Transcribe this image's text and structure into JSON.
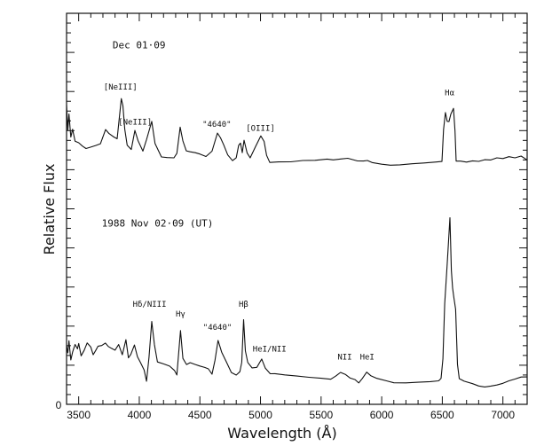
{
  "chart_data": {
    "type": "line",
    "title": "",
    "xlabel": "Wavelength (Å)",
    "ylabel": "Relative  Flux",
    "xlim": [
      3400,
      7200
    ],
    "ylim": [
      0,
      100
    ],
    "x_ticks": [
      3500,
      4000,
      4500,
      5000,
      5500,
      6000,
      6500,
      7000
    ],
    "x_tick_labels": [
      "3500",
      "4000",
      "4500",
      "5000",
      "5500",
      "6000",
      "6500",
      "7000"
    ],
    "y_tick_labels": [
      "0"
    ],
    "grid": false,
    "series": [
      {
        "name": "Dec 01·09",
        "x": [
          3400,
          3410,
          3420,
          3435,
          3450,
          3470,
          3500,
          3530,
          3560,
          3600,
          3640,
          3680,
          3722,
          3750,
          3790,
          3817,
          3835,
          3852,
          3865,
          3880,
          3900,
          3934,
          3964,
          3990,
          4030,
          4060,
          4103,
          4130,
          4183,
          4230,
          4286,
          4310,
          4337,
          4360,
          4388,
          4420,
          4462,
          4500,
          4550,
          4600,
          4645,
          4670,
          4696,
          4730,
          4769,
          4800,
          4820,
          4835,
          4850,
          4864,
          4890,
          4915,
          4960,
          5003,
          5030,
          5050,
          5077,
          5150,
          5250,
          5350,
          5450,
          5550,
          5600,
          5662,
          5720,
          5800,
          5850,
          5882,
          5920,
          6000,
          6072,
          6150,
          6250,
          6350,
          6450,
          6497,
          6510,
          6526,
          6540,
          6555,
          6570,
          6592,
          6605,
          6614,
          6650,
          6700,
          6750,
          6800,
          6850,
          6900,
          6950,
          7000,
          7050,
          7100,
          7150,
          7200
        ],
        "y": [
          76.5,
          70,
          74,
          68,
          70,
          67,
          66.7,
          66,
          65.5,
          66,
          66.5,
          67,
          70.6,
          69.5,
          68.5,
          67.9,
          73,
          77.9,
          76,
          70,
          66,
          65,
          70,
          67.5,
          65,
          68,
          72.7,
          67,
          63.5,
          63.2,
          63,
          64,
          70.6,
          67,
          64.5,
          64.3,
          64.2,
          64,
          63.5,
          65,
          69.7,
          68.5,
          66.7,
          64,
          62.4,
          63,
          66,
          66.5,
          64,
          67.2,
          64,
          62.9,
          66,
          68.8,
          67.5,
          64,
          62.2,
          62.3,
          62.2,
          62.4,
          62.3,
          62.5,
          62.2,
          62.4,
          62.6,
          62,
          62.1,
          62.4,
          62,
          61.7,
          61.5,
          61.6,
          61.8,
          61.9,
          62,
          62,
          70,
          74.3,
          72,
          72,
          74,
          75.6,
          70,
          62.4,
          62.5,
          62.3,
          62.6,
          62.4,
          62.7,
          62.5,
          62.9,
          62.6,
          63,
          62.7,
          63.2,
          62.5
        ]
      },
      {
        "name": "1988 Nov 02·09 (UT)",
        "x": [
          3400,
          3410,
          3420,
          3435,
          3450,
          3470,
          3490,
          3500,
          3520,
          3545,
          3570,
          3600,
          3620,
          3640,
          3660,
          3690,
          3720,
          3745,
          3770,
          3800,
          3830,
          3860,
          3890,
          3910,
          3930,
          3960,
          3985,
          4010,
          4040,
          4060,
          4080,
          4103,
          4125,
          4150,
          4200,
          4250,
          4290,
          4310,
          4340,
          4360,
          4390,
          4420,
          4460,
          4500,
          4540,
          4570,
          4600,
          4625,
          4650,
          4680,
          4720,
          4760,
          4800,
          4830,
          4845,
          4861,
          4875,
          4895,
          4930,
          4970,
          5010,
          5040,
          5080,
          5120,
          5200,
          5300,
          5400,
          5500,
          5580,
          5620,
          5660,
          5700,
          5740,
          5780,
          5810,
          5840,
          5876,
          5910,
          5960,
          6050,
          6100,
          6200,
          6300,
          6400,
          6470,
          6490,
          6505,
          6520,
          6540,
          6552,
          6563,
          6575,
          6585,
          6595,
          6610,
          6625,
          6640,
          6680,
          6750,
          6800,
          6850,
          6900,
          6950,
          7000,
          7050,
          7100,
          7150,
          7200
        ],
        "y": [
          15,
          13,
          16,
          11,
          13,
          15,
          14,
          15.5,
          12.5,
          14,
          16,
          15,
          13,
          14,
          15,
          15,
          15.5,
          14.5,
          14,
          13.5,
          15,
          12.5,
          16.5,
          12,
          13,
          15.5,
          12.5,
          11,
          9,
          6,
          12,
          21,
          15,
          10.5,
          10,
          9.5,
          8.5,
          7.5,
          19,
          12,
          10.5,
          11,
          10.5,
          10,
          9.5,
          9,
          7.5,
          11,
          16,
          13,
          10.5,
          8,
          7.5,
          8.5,
          11,
          22,
          14,
          11,
          9.5,
          9.5,
          11.5,
          9,
          7.5,
          7.5,
          7.2,
          7,
          6.8,
          6.7,
          6.6,
          7.5,
          8.5,
          8,
          7,
          6.5,
          5.5,
          6.5,
          8,
          7,
          6.3,
          5.6,
          5.3,
          5.4,
          5.7,
          6,
          6.3,
          7,
          12,
          26,
          36,
          42,
          47.6,
          34,
          29.4,
          27,
          24,
          10,
          6.5,
          6,
          5.5,
          5,
          4.8,
          5,
          5.2,
          5.5,
          6,
          6.3,
          6.7,
          7
        ]
      }
    ],
    "annotations": [
      {
        "text": "Dec  01·09",
        "x": 3780,
        "y": 91,
        "kind": "date"
      },
      {
        "text": "[NeIII]",
        "x": 3845,
        "y": 80.5
      },
      {
        "text": "[NeIII]",
        "x": 3965,
        "y": 71.5
      },
      {
        "text": "\"4640\"",
        "x": 4640,
        "y": 71
      },
      {
        "text": "[OIII]",
        "x": 5000,
        "y": 70
      },
      {
        "text": "Hα",
        "x": 6560,
        "y": 79
      },
      {
        "text": "1988  Nov  02·09  (UT)",
        "x": 3690,
        "y": 45.5,
        "kind": "date"
      },
      {
        "text": "Hδ/NIII",
        "x": 4085,
        "y": 25
      },
      {
        "text": "Hγ",
        "x": 4340,
        "y": 22.5
      },
      {
        "text": "\"4640\"",
        "x": 4645,
        "y": 19
      },
      {
        "text": "Hβ",
        "x": 4860,
        "y": 25
      },
      {
        "text": "HeI/NII",
        "x": 5075,
        "y": 13.5
      },
      {
        "text": "NII",
        "x": 5695,
        "y": 11.5
      },
      {
        "text": "HeI",
        "x": 5880,
        "y": 11.5
      }
    ]
  }
}
